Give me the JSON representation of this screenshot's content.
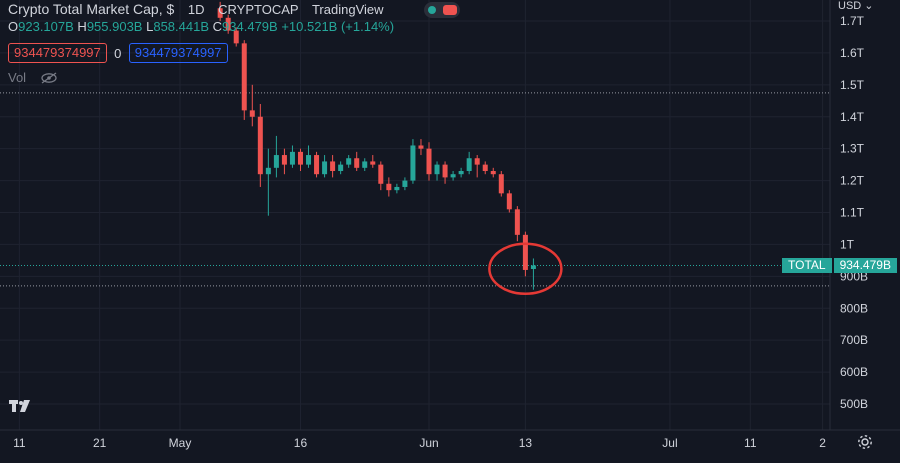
{
  "legend": {
    "title": "Crypto Total Market Cap, $",
    "interval": "1D",
    "source": "CRYPTOCAP",
    "provider": "TradingView",
    "o_label": "O",
    "o_value": "923.107B",
    "h_label": "H",
    "h_value": "955.903B",
    "l_label": "L",
    "l_value": "858.441B",
    "c_label": "C",
    "c_value": "934.479B",
    "change": "+10.521B (+1.14%)"
  },
  "inputs": {
    "box1": "934479374997",
    "zero": "0",
    "box2": "934479374997"
  },
  "volume": {
    "label": "Vol"
  },
  "currency": "USD",
  "price_label": {
    "name": "TOTAL",
    "value": "934.479B"
  },
  "colors": {
    "up": "#26a69a",
    "down": "#ef5350",
    "background": "#131722",
    "grid": "#1f2330",
    "annotation": "#e53935"
  },
  "icons": [
    "eye-crossed-icon",
    "settings-gear-icon",
    "tradingview-logo-icon",
    "chevron-down-icon"
  ],
  "chart_data": {
    "type": "candlestick",
    "title": "Crypto Total Market Cap, $",
    "y_unit": "USD",
    "y_ticks": [
      "1.7T",
      "1.6T",
      "1.5T",
      "1.4T",
      "1.3T",
      "1.2T",
      "1.1T",
      "1T",
      "900B",
      "800B",
      "700B",
      "600B",
      "500B"
    ],
    "y_tick_values": [
      1.7,
      1.6,
      1.5,
      1.4,
      1.3,
      1.2,
      1.1,
      1.0,
      0.9,
      0.8,
      0.7,
      0.6,
      0.5
    ],
    "x_ticks": [
      "11",
      "21",
      "May",
      "16",
      "Jun",
      "13",
      "Jul",
      "11",
      "2"
    ],
    "x_tick_dates": [
      "2022-04-11",
      "2022-04-21",
      "2022-05-01",
      "2022-05-16",
      "2022-06-01",
      "2022-06-13",
      "2022-07-01",
      "2022-07-11",
      "2022-07-20"
    ],
    "x_range": [
      "2022-04-07",
      "2022-07-21"
    ],
    "ylim": [
      0.45,
      1.75
    ],
    "dotted_levels": [
      1.475,
      0.87
    ],
    "current_price": 0.934,
    "annotation": {
      "type": "circle",
      "date": "2022-06-13",
      "value": 0.93
    },
    "candles": [
      {
        "d": "2022-05-06",
        "o": 1.74,
        "h": 1.76,
        "l": 1.7,
        "c": 1.71
      },
      {
        "d": "2022-05-07",
        "o": 1.71,
        "h": 1.72,
        "l": 1.66,
        "c": 1.67
      },
      {
        "d": "2022-05-08",
        "o": 1.67,
        "h": 1.68,
        "l": 1.62,
        "c": 1.63
      },
      {
        "d": "2022-05-09",
        "o": 1.63,
        "h": 1.64,
        "l": 1.39,
        "c": 1.42
      },
      {
        "d": "2022-05-10",
        "o": 1.42,
        "h": 1.5,
        "l": 1.37,
        "c": 1.4
      },
      {
        "d": "2022-05-11",
        "o": 1.4,
        "h": 1.44,
        "l": 1.18,
        "c": 1.22
      },
      {
        "d": "2022-05-12",
        "o": 1.22,
        "h": 1.3,
        "l": 1.09,
        "c": 1.24
      },
      {
        "d": "2022-05-13",
        "o": 1.24,
        "h": 1.34,
        "l": 1.21,
        "c": 1.28
      },
      {
        "d": "2022-05-14",
        "o": 1.28,
        "h": 1.3,
        "l": 1.22,
        "c": 1.25
      },
      {
        "d": "2022-05-15",
        "o": 1.25,
        "h": 1.31,
        "l": 1.24,
        "c": 1.29
      },
      {
        "d": "2022-05-16",
        "o": 1.29,
        "h": 1.3,
        "l": 1.23,
        "c": 1.25
      },
      {
        "d": "2022-05-17",
        "o": 1.25,
        "h": 1.31,
        "l": 1.24,
        "c": 1.28
      },
      {
        "d": "2022-05-18",
        "o": 1.28,
        "h": 1.29,
        "l": 1.21,
        "c": 1.22
      },
      {
        "d": "2022-05-19",
        "o": 1.22,
        "h": 1.28,
        "l": 1.21,
        "c": 1.26
      },
      {
        "d": "2022-05-20",
        "o": 1.26,
        "h": 1.28,
        "l": 1.21,
        "c": 1.23
      },
      {
        "d": "2022-05-21",
        "o": 1.23,
        "h": 1.26,
        "l": 1.22,
        "c": 1.25
      },
      {
        "d": "2022-05-22",
        "o": 1.25,
        "h": 1.28,
        "l": 1.24,
        "c": 1.27
      },
      {
        "d": "2022-05-23",
        "o": 1.27,
        "h": 1.29,
        "l": 1.23,
        "c": 1.24
      },
      {
        "d": "2022-05-24",
        "o": 1.24,
        "h": 1.27,
        "l": 1.23,
        "c": 1.26
      },
      {
        "d": "2022-05-25",
        "o": 1.26,
        "h": 1.28,
        "l": 1.24,
        "c": 1.25
      },
      {
        "d": "2022-05-26",
        "o": 1.25,
        "h": 1.26,
        "l": 1.17,
        "c": 1.19
      },
      {
        "d": "2022-05-27",
        "o": 1.19,
        "h": 1.21,
        "l": 1.15,
        "c": 1.17
      },
      {
        "d": "2022-05-28",
        "o": 1.17,
        "h": 1.19,
        "l": 1.16,
        "c": 1.18
      },
      {
        "d": "2022-05-29",
        "o": 1.18,
        "h": 1.21,
        "l": 1.17,
        "c": 1.2
      },
      {
        "d": "2022-05-30",
        "o": 1.2,
        "h": 1.33,
        "l": 1.19,
        "c": 1.31
      },
      {
        "d": "2022-05-31",
        "o": 1.31,
        "h": 1.33,
        "l": 1.28,
        "c": 1.3
      },
      {
        "d": "2022-06-01",
        "o": 1.3,
        "h": 1.32,
        "l": 1.2,
        "c": 1.22
      },
      {
        "d": "2022-06-02",
        "o": 1.22,
        "h": 1.26,
        "l": 1.2,
        "c": 1.25
      },
      {
        "d": "2022-06-03",
        "o": 1.25,
        "h": 1.26,
        "l": 1.19,
        "c": 1.21
      },
      {
        "d": "2022-06-04",
        "o": 1.21,
        "h": 1.23,
        "l": 1.2,
        "c": 1.22
      },
      {
        "d": "2022-06-05",
        "o": 1.22,
        "h": 1.24,
        "l": 1.21,
        "c": 1.23
      },
      {
        "d": "2022-06-06",
        "o": 1.23,
        "h": 1.29,
        "l": 1.22,
        "c": 1.27
      },
      {
        "d": "2022-06-07",
        "o": 1.27,
        "h": 1.28,
        "l": 1.21,
        "c": 1.25
      },
      {
        "d": "2022-06-08",
        "o": 1.25,
        "h": 1.26,
        "l": 1.22,
        "c": 1.23
      },
      {
        "d": "2022-06-09",
        "o": 1.23,
        "h": 1.24,
        "l": 1.21,
        "c": 1.22
      },
      {
        "d": "2022-06-10",
        "o": 1.22,
        "h": 1.23,
        "l": 1.15,
        "c": 1.16
      },
      {
        "d": "2022-06-11",
        "o": 1.16,
        "h": 1.17,
        "l": 1.1,
        "c": 1.11
      },
      {
        "d": "2022-06-12",
        "o": 1.11,
        "h": 1.12,
        "l": 1.01,
        "c": 1.03
      },
      {
        "d": "2022-06-13",
        "o": 1.03,
        "h": 1.04,
        "l": 0.9,
        "c": 0.92
      },
      {
        "d": "2022-06-14",
        "o": 0.923,
        "h": 0.956,
        "l": 0.858,
        "c": 0.934
      }
    ]
  }
}
